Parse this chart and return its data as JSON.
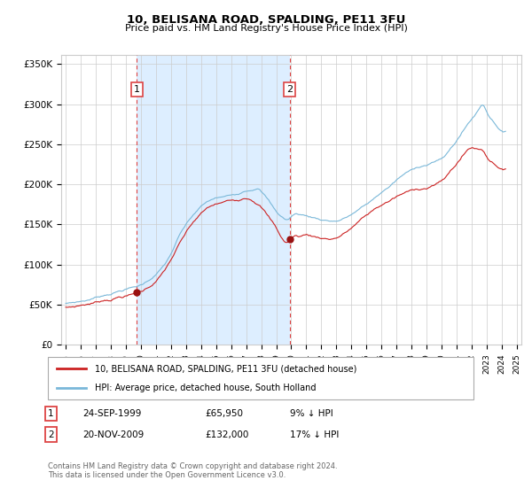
{
  "title": "10, BELISANA ROAD, SPALDING, PE11 3FU",
  "subtitle": "Price paid vs. HM Land Registry's House Price Index (HPI)",
  "ylabel_ticks": [
    "£0",
    "£50K",
    "£100K",
    "£150K",
    "£200K",
    "£250K",
    "£300K",
    "£350K"
  ],
  "ytick_values": [
    0,
    50000,
    100000,
    150000,
    200000,
    250000,
    300000,
    350000
  ],
  "ylim": [
    0,
    362000
  ],
  "xlim_start": 1994.7,
  "xlim_end": 2025.3,
  "sale1_date": 1999.73,
  "sale1_price": 65950,
  "sale2_date": 2009.89,
  "sale2_price": 132000,
  "legend_line1": "10, BELISANA ROAD, SPALDING, PE11 3FU (detached house)",
  "legend_line2": "HPI: Average price, detached house, South Holland",
  "table_row1": [
    "1",
    "24-SEP-1999",
    "£65,950",
    "9% ↓ HPI"
  ],
  "table_row2": [
    "2",
    "20-NOV-2009",
    "£132,000",
    "17% ↓ HPI"
  ],
  "footer": "Contains HM Land Registry data © Crown copyright and database right 2024.\nThis data is licensed under the Open Government Licence v3.0.",
  "hpi_color": "#7ab8d9",
  "price_color": "#cc2222",
  "vline_color": "#dd4444",
  "shade_color": "#ddeeff",
  "bg_color": "#ffffff",
  "grid_color": "#cccccc"
}
